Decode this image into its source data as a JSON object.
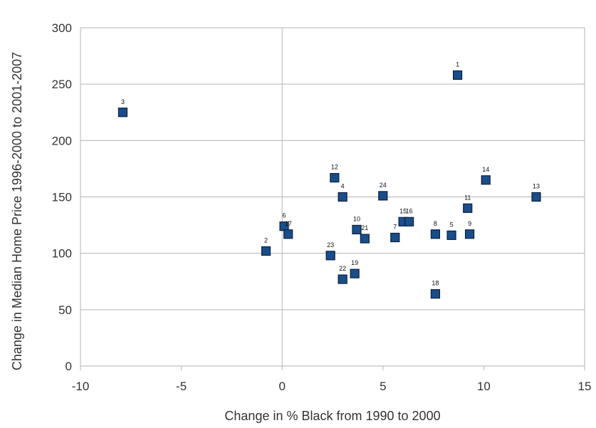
{
  "chart_data": {
    "type": "scatter",
    "title": "",
    "xlabel": "Change in % Black from 1990 to 2000",
    "ylabel": "Change in Median Home Price 1996-2000 to 2001-2007",
    "xlim": [
      -10,
      15
    ],
    "ylim": [
      0,
      300
    ],
    "xticks": [
      -10,
      -5,
      0,
      5,
      10,
      15
    ],
    "yticks": [
      0,
      50,
      100,
      150,
      200,
      250,
      300
    ],
    "grid": "horizontal",
    "legend": "none",
    "marker_color": "#1a4e8a",
    "points": [
      {
        "label": "1",
        "x": 8.7,
        "y": 258
      },
      {
        "label": "2",
        "x": -0.8,
        "y": 102
      },
      {
        "label": "3",
        "x": -7.9,
        "y": 225
      },
      {
        "label": "4",
        "x": 3.0,
        "y": 150
      },
      {
        "label": "5",
        "x": 8.4,
        "y": 116
      },
      {
        "label": "6",
        "x": 0.1,
        "y": 124
      },
      {
        "label": "7",
        "x": 5.6,
        "y": 114
      },
      {
        "label": "8",
        "x": 7.6,
        "y": 117
      },
      {
        "label": "9",
        "x": 9.3,
        "y": 117
      },
      {
        "label": "10",
        "x": 3.7,
        "y": 121
      },
      {
        "label": "11",
        "x": 9.2,
        "y": 140
      },
      {
        "label": "12",
        "x": 2.6,
        "y": 167
      },
      {
        "label": "13",
        "x": 12.6,
        "y": 150
      },
      {
        "label": "14",
        "x": 10.1,
        "y": 165
      },
      {
        "label": "15",
        "x": 6.0,
        "y": 128
      },
      {
        "label": "16",
        "x": 6.3,
        "y": 128
      },
      {
        "label": "17",
        "x": 0.3,
        "y": 117
      },
      {
        "label": "18",
        "x": 7.6,
        "y": 64
      },
      {
        "label": "19",
        "x": 3.6,
        "y": 82
      },
      {
        "label": "21",
        "x": 4.1,
        "y": 113
      },
      {
        "label": "22",
        "x": 3.0,
        "y": 77
      },
      {
        "label": "23",
        "x": 2.4,
        "y": 98
      },
      {
        "label": "24",
        "x": 5.0,
        "y": 151
      }
    ]
  }
}
